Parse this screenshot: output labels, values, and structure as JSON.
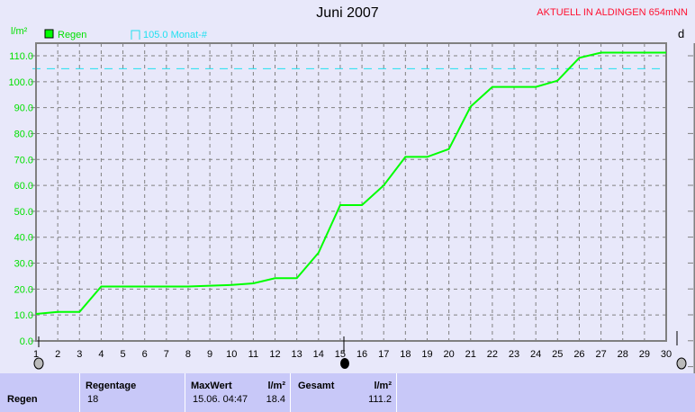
{
  "chart_data": {
    "type": "line",
    "title": "Juni 2007",
    "ylabel": "l/m²",
    "right_axis_label": "d",
    "x": [
      1,
      2,
      3,
      4,
      5,
      6,
      7,
      8,
      9,
      10,
      11,
      12,
      13,
      14,
      15,
      16,
      17,
      18,
      19,
      20,
      21,
      22,
      23,
      24,
      25,
      26,
      27,
      28,
      29,
      30
    ],
    "series": [
      {
        "name": "Regen",
        "color": "#00ff00",
        "values": [
          10.4,
          11.2,
          11.2,
          21,
          21,
          21,
          21,
          21,
          21.3,
          21.6,
          22.2,
          24.2,
          24.2,
          34,
          52.4,
          52.4,
          60,
          71,
          71,
          74,
          90.4,
          98,
          98,
          98,
          100.4,
          109.2,
          111.2,
          111.2,
          111.2,
          111.2
        ]
      }
    ],
    "reference_line": {
      "label": "105.0 Monat-#",
      "value": 105,
      "color": "#20e0f0"
    },
    "ylim": [
      0,
      110
    ],
    "yticks": [
      "0.0",
      "10.0",
      "20.0",
      "30.0",
      "40.0",
      "50.0",
      "60.0",
      "70.0",
      "80.0",
      "90.0",
      "100.0",
      "110.0"
    ],
    "xlim": [
      1,
      30
    ],
    "grid": true,
    "legend_placement": "top-left"
  },
  "header": {
    "station": "AKTUELL IN ALDINGEN 654mNN"
  },
  "table": {
    "row_label": "Regen",
    "regentage_label": "Regentage",
    "regentage": "18",
    "maxwert_label": "MaxWert",
    "maxwert_unit": "l/m²",
    "maxwert_time": "15.06.  04:47",
    "maxwert": "18.4",
    "gesamt_label": "Gesamt",
    "gesamt_unit": "l/m²",
    "gesamt": "111.2"
  }
}
